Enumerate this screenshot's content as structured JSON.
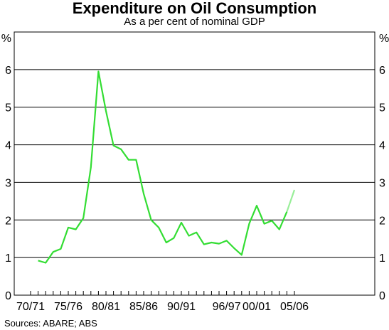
{
  "chart_data": {
    "type": "line",
    "title": "Expenditure on Oil Consumption",
    "subtitle": "As a per cent of nominal GDP",
    "ylabel": "%",
    "ylim": [
      0,
      7
    ],
    "yticks": [
      0,
      1,
      2,
      3,
      4,
      5,
      6
    ],
    "y_axis_units": "%",
    "grid": true,
    "x_tick_labels": [
      "70/71",
      "75/76",
      "80/81",
      "85/86",
      "90/91",
      "96/97",
      "00/01",
      "05/06"
    ],
    "x": [
      "71/72",
      "72/73",
      "73/74",
      "74/75",
      "75/76",
      "76/77",
      "77/78",
      "78/79",
      "79/80",
      "80/81",
      "81/82",
      "82/83",
      "83/84",
      "84/85",
      "85/86",
      "86/87",
      "87/88",
      "88/89",
      "89/90",
      "90/91",
      "91/92",
      "92/93",
      "93/94",
      "94/95",
      "95/96",
      "96/97",
      "97/98",
      "98/99",
      "99/00",
      "00/01",
      "01/02",
      "02/03",
      "03/04",
      "04/05",
      "05/06"
    ],
    "series": [
      {
        "color": "#33dd33",
        "values": [
          0.92,
          0.86,
          1.15,
          1.23,
          1.8,
          1.75,
          2.05,
          3.4,
          5.95,
          4.9,
          3.98,
          3.88,
          3.6,
          3.6,
          2.7,
          2.0,
          1.8,
          1.4,
          1.52,
          1.93,
          1.58,
          1.67,
          1.35,
          1.4,
          1.37,
          1.45,
          1.25,
          1.07,
          1.9,
          2.38,
          1.9,
          1.98,
          1.75,
          2.22,
          null
        ]
      },
      {
        "color": "#99ee99",
        "values": [
          null,
          null,
          null,
          null,
          null,
          null,
          null,
          null,
          null,
          null,
          null,
          null,
          null,
          null,
          null,
          null,
          null,
          null,
          null,
          null,
          null,
          null,
          null,
          null,
          null,
          null,
          null,
          null,
          null,
          null,
          null,
          null,
          null,
          2.22,
          2.8
        ]
      }
    ],
    "source": "Sources: ABARE; ABS"
  }
}
